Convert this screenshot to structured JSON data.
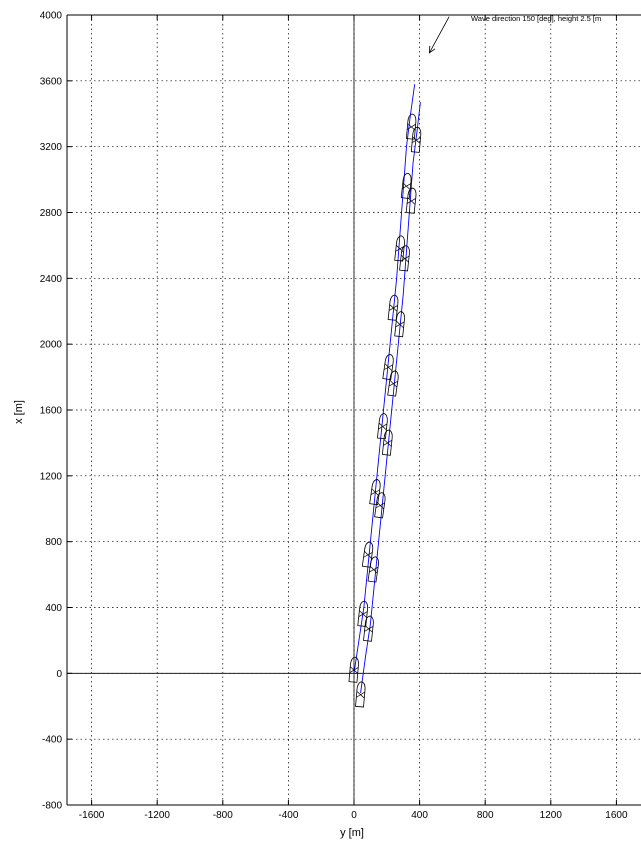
{
  "chart_data": {
    "type": "line",
    "title": "",
    "xlabel": "y [m]",
    "ylabel": "x [m]",
    "xlim": [
      -1750,
      1750
    ],
    "ylim": [
      -800,
      4000
    ],
    "xticks": [
      -1600,
      -1200,
      -800,
      -400,
      0,
      400,
      800,
      1200,
      1600
    ],
    "yticks": [
      -800,
      -400,
      0,
      400,
      800,
      1200,
      1600,
      2000,
      2400,
      2800,
      3200,
      3600,
      4000
    ],
    "grid": true,
    "grid_style": "dotted",
    "legend": null,
    "axis_color": "#000000",
    "annotation": {
      "text": "Wave direction 150 [deg], height 2.5 [m",
      "arrow_from": [
        580,
        3990
      ],
      "arrow_to": [
        460,
        3770
      ]
    },
    "series": [
      {
        "color": "#0000ff",
        "x": [
          0,
          30,
          60,
          100,
          140,
          180,
          220,
          260,
          290,
          320,
          345,
          370
        ],
        "y": [
          0,
          200,
          400,
          800,
          1200,
          1600,
          2000,
          2400,
          2800,
          3200,
          3400,
          3580
        ]
      },
      {
        "color": "#0000ff",
        "x": [
          40,
          70,
          100,
          140,
          180,
          220,
          260,
          300,
          330,
          360,
          385,
          405
        ],
        "y": [
          -120,
          100,
          300,
          700,
          1100,
          1500,
          1900,
          2300,
          2700,
          3100,
          3300,
          3470
        ]
      }
    ],
    "ship_icons": [
      {
        "y": 0,
        "x": 20,
        "heading": 5
      },
      {
        "y": 40,
        "x": -130,
        "heading": 5
      },
      {
        "y": 55,
        "x": 360,
        "heading": 6
      },
      {
        "y": 90,
        "x": 270,
        "heading": 6
      },
      {
        "y": 85,
        "x": 720,
        "heading": 8
      },
      {
        "y": 120,
        "x": 630,
        "heading": 8
      },
      {
        "y": 130,
        "x": 1100,
        "heading": 8
      },
      {
        "y": 160,
        "x": 1020,
        "heading": 8
      },
      {
        "y": 175,
        "x": 1500,
        "heading": 6
      },
      {
        "y": 205,
        "x": 1400,
        "heading": 6
      },
      {
        "y": 210,
        "x": 1860,
        "heading": 8
      },
      {
        "y": 240,
        "x": 1760,
        "heading": 8
      },
      {
        "y": 240,
        "x": 2220,
        "heading": 6
      },
      {
        "y": 280,
        "x": 2120,
        "heading": 6
      },
      {
        "y": 280,
        "x": 2580,
        "heading": 6
      },
      {
        "y": 310,
        "x": 2520,
        "heading": 6
      },
      {
        "y": 320,
        "x": 2960,
        "heading": 6
      },
      {
        "y": 350,
        "x": 2870,
        "heading": 6
      },
      {
        "y": 350,
        "x": 3320,
        "heading": 5
      },
      {
        "y": 380,
        "x": 3240,
        "heading": 5
      }
    ]
  }
}
